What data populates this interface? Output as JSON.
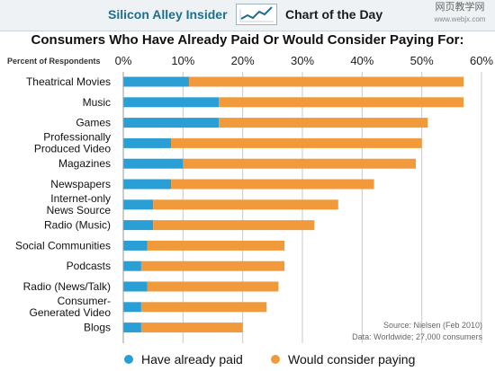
{
  "header": {
    "brand": "Silicon Alley Insider",
    "feature": "Chart of the Day",
    "watermark_line1": "网页教学网",
    "watermark_line2": "www.webjx.com"
  },
  "chart_data": {
    "type": "bar",
    "stacked": true,
    "title": "Consumers Who Have Already Paid Or Would Consider Paying For:",
    "ylabel": "Percent of Respondents",
    "xlim": [
      0,
      60
    ],
    "ticks": [
      "0%",
      "10%",
      "20%",
      "30%",
      "40%",
      "50%",
      "60%"
    ],
    "grid": true,
    "legend_position": "bottom",
    "categories": [
      "Theatrical Movies",
      "Music",
      "Games",
      "Professionally Produced Video",
      "Magazines",
      "Newspapers",
      "Internet-only News Source",
      "Radio (Music)",
      "Social Communities",
      "Podcasts",
      "Radio (News/Talk)",
      "Consumer-Generated Video",
      "Blogs"
    ],
    "series": [
      {
        "name": "Have already paid",
        "color": "#2a9fd6",
        "values": [
          11,
          16,
          16,
          8,
          10,
          8,
          5,
          5,
          4,
          3,
          4,
          3,
          3
        ]
      },
      {
        "name": "Would consider paying",
        "color": "#f09a3c",
        "values": [
          46,
          41,
          35,
          42,
          39,
          34,
          31,
          27,
          23,
          24,
          22,
          21,
          17
        ]
      }
    ],
    "source": "Source: Nielsen (Feb 2010)",
    "data_note": "Data: Worldwide; 27,000 consumers"
  }
}
